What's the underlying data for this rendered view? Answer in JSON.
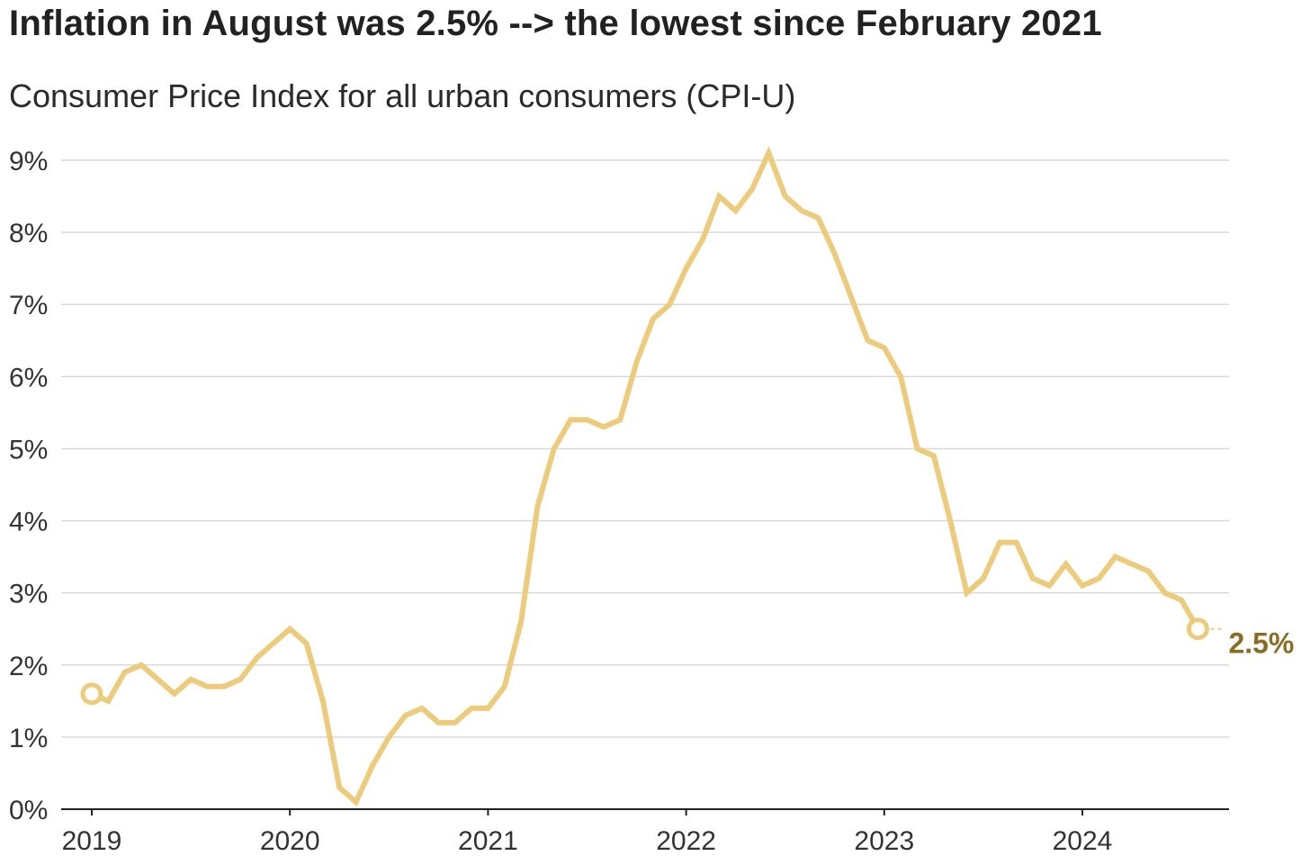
{
  "title": "Inflation in August was 2.5% --> the lowest since February 2021",
  "subtitle": "Consumer Price Index for all urban consumers (CPI-U)",
  "colors": {
    "line": "#EDCB7C",
    "end_label": "#8A6D22",
    "grid": "#D9D9D9",
    "axis": "#222222"
  },
  "chart_data": {
    "type": "line",
    "title": "Inflation in August was 2.5% --> the lowest since February 2021",
    "subtitle": "Consumer Price Index for all urban consumers (CPI-U)",
    "xlabel": "",
    "ylabel": "",
    "ylim": [
      0,
      9
    ],
    "yticks": [
      "0%",
      "1%",
      "2%",
      "3%",
      "4%",
      "5%",
      "6%",
      "7%",
      "8%",
      "9%"
    ],
    "xticks": [
      "2019",
      "2020",
      "2021",
      "2022",
      "2023",
      "2024"
    ],
    "grid": true,
    "x_start": "2019-01",
    "x_end": "2024-08",
    "series": [
      {
        "values": [
          1.6,
          1.5,
          1.9,
          2.0,
          1.8,
          1.6,
          1.8,
          1.7,
          1.7,
          1.8,
          2.1,
          2.3,
          2.5,
          2.3,
          1.5,
          0.3,
          0.1,
          0.6,
          1.0,
          1.3,
          1.4,
          1.2,
          1.2,
          1.4,
          1.4,
          1.7,
          2.6,
          4.2,
          5.0,
          5.4,
          5.4,
          5.3,
          5.4,
          6.2,
          6.8,
          7.0,
          7.5,
          7.9,
          8.5,
          8.3,
          8.6,
          9.1,
          8.5,
          8.3,
          8.2,
          7.7,
          7.1,
          6.5,
          6.4,
          6.0,
          5.0,
          4.9,
          4.0,
          3.0,
          3.2,
          3.7,
          3.7,
          3.2,
          3.1,
          3.4,
          3.1,
          3.2,
          3.5,
          3.4,
          3.3,
          3.0,
          2.9,
          2.5
        ]
      }
    ],
    "end_label": "2.5%"
  }
}
